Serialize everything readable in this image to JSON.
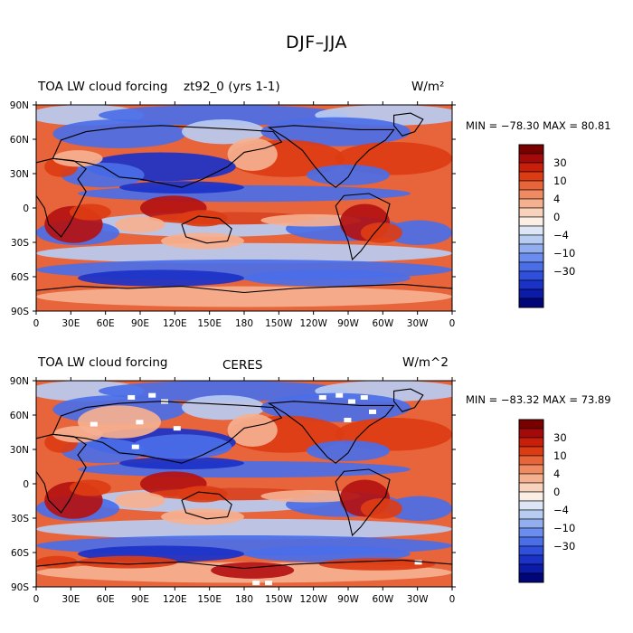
{
  "title": "DJF–JJA",
  "units_top": "W/m",
  "units_top_sup": "2",
  "panels": [
    {
      "left_title": "TOA LW cloud forcing",
      "center_title": "zt92_0 (yrs 1-1)",
      "right_title": "W/m²",
      "min_max": "MIN = −78.30  MAX =  80.81"
    },
    {
      "left_title": "TOA LW cloud forcing",
      "center_title": "CERES",
      "right_title": "W/m^2",
      "min_max": "MIN = −83.32  MAX =  73.89"
    }
  ],
  "lat_labels": [
    "90N",
    "60N",
    "30N",
    "0",
    "30S",
    "60S",
    "90S"
  ],
  "lon_labels": [
    "0",
    "30E",
    "60E",
    "90E",
    "120E",
    "150E",
    "180",
    "150W",
    "120W",
    "90W",
    "60W",
    "30W",
    "0"
  ],
  "colorbar": {
    "labels": [
      "30",
      "10",
      "4",
      "0",
      "−4",
      "−10",
      "−30"
    ],
    "colors": [
      "#7a0000",
      "#a50a0a",
      "#c81e0a",
      "#dc3c14",
      "#e8643a",
      "#f08a62",
      "#f5b090",
      "#f8d2bc",
      "#fbeee4",
      "#dce6f7",
      "#b8ccf2",
      "#92aeef",
      "#6a8def",
      "#4a6ee8",
      "#2e50dc",
      "#1a32c8",
      "#0c1aa8",
      "#00067a"
    ]
  },
  "map_colors": {
    "ocean_base": "#e8643a",
    "strong_pos": "#b31212",
    "mid_pos": "#dc3c14",
    "light_pos": "#f5b090",
    "neutral": "#f4ece8",
    "light_neg": "#b8ccf2",
    "mid_neg": "#4a6ee8",
    "strong_neg": "#1a32c8",
    "deep_neg": "#0c1aa8"
  }
}
